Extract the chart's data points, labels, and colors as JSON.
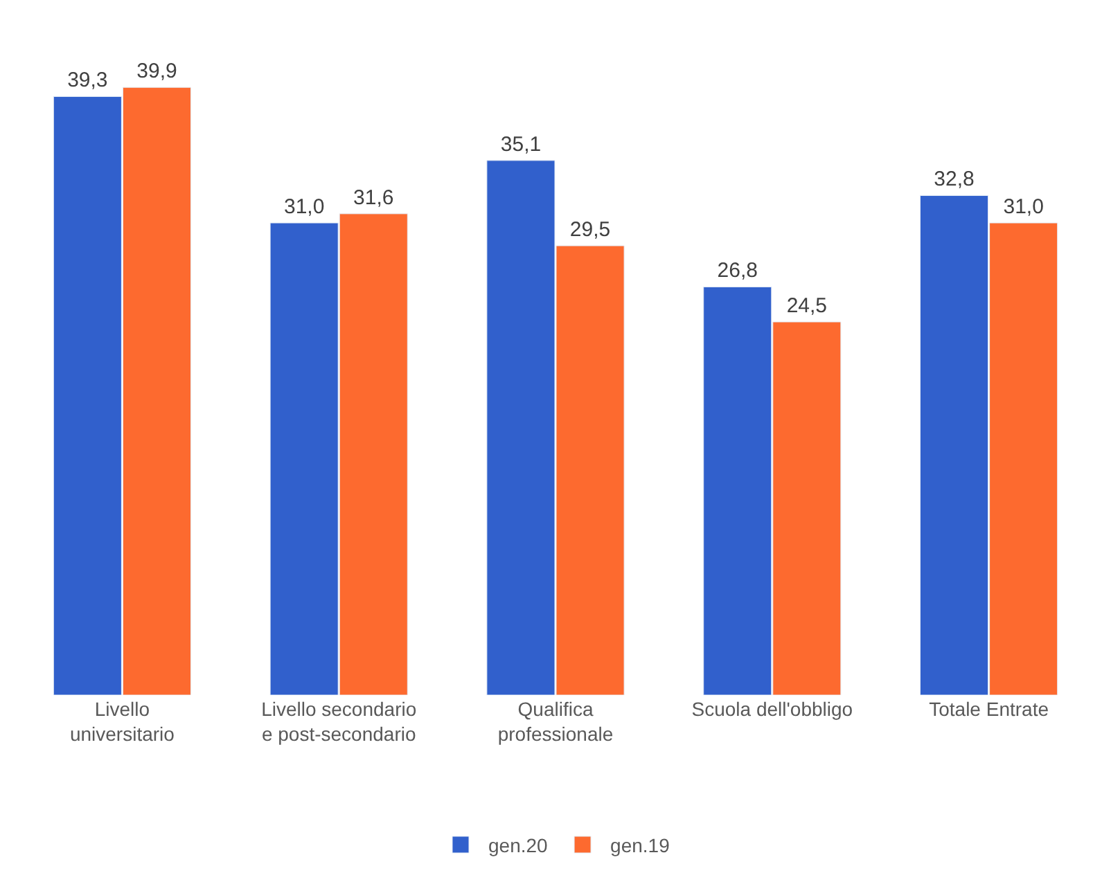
{
  "chart_data": {
    "type": "bar",
    "categories": [
      "Livello\nuniversitario",
      "Livello secondario\ne post-secondario",
      "Qualifica\nprofessionale",
      "Scuola dell'obbligo",
      "Totale Entrate"
    ],
    "series": [
      {
        "name": "gen.20",
        "color": "#3160cc",
        "values": [
          39.3,
          31.0,
          35.1,
          26.8,
          32.8
        ],
        "value_labels": [
          "39,3",
          "31,0",
          "35,1",
          "26,8",
          "32,8"
        ]
      },
      {
        "name": "gen.19",
        "color": "#fd6a2f",
        "values": [
          39.9,
          31.6,
          29.5,
          24.5,
          31.0
        ],
        "value_labels": [
          "39,9",
          "31,6",
          "29,5",
          "24,5",
          "31,0"
        ]
      }
    ],
    "legend": "bottom",
    "tick_labels": "x"
  }
}
